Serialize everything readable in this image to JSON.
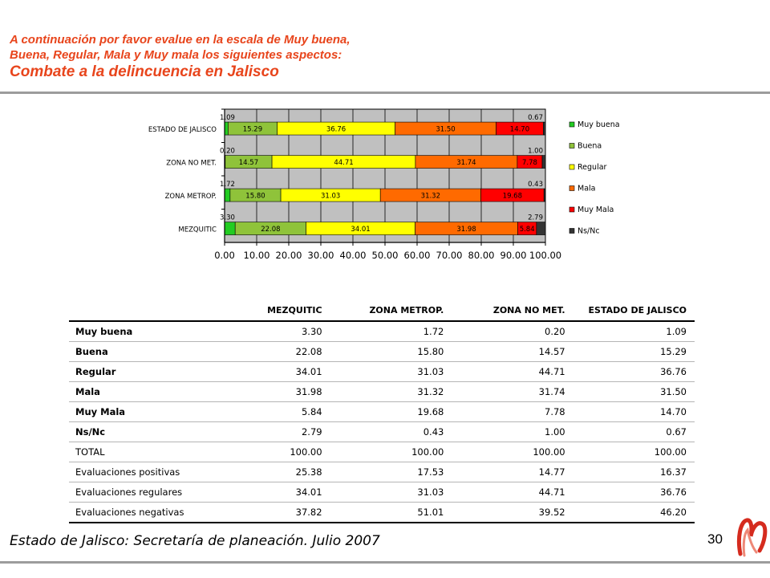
{
  "header": {
    "line1": "A continuación por favor evalue en la escala de Muy buena,",
    "line2": "Buena, Regular, Mala y Muy mala los siguientes aspectos:",
    "title": "Combate a la delincuencia en Jalisco"
  },
  "chart_data": {
    "type": "bar",
    "orientation": "horizontal",
    "stacked": true,
    "categories": [
      "ESTADO DE JALISCO",
      "ZONA NO MET.",
      "ZONA METROP.",
      "MEZQUITIC"
    ],
    "series": [
      {
        "name": "Muy buena",
        "color": "#22cc22",
        "values": [
          1.09,
          0.2,
          1.72,
          3.3
        ]
      },
      {
        "name": "Buena",
        "color": "#8fc33a",
        "values": [
          15.29,
          14.57,
          15.8,
          22.08
        ]
      },
      {
        "name": "Regular",
        "color": "#ffff00",
        "values": [
          36.76,
          44.71,
          31.03,
          34.01
        ]
      },
      {
        "name": "Mala",
        "color": "#ff6a00",
        "values": [
          31.5,
          31.74,
          31.32,
          31.98
        ]
      },
      {
        "name": "Muy Mala",
        "color": "#ff0000",
        "values": [
          14.7,
          7.78,
          19.68,
          5.84
        ]
      },
      {
        "name": "Ns/Nc",
        "color": "#333333",
        "values": [
          0.67,
          1.0,
          0.43,
          2.79
        ]
      }
    ],
    "xlim": [
      0,
      100
    ],
    "xticks": [
      "0.00",
      "10.00",
      "20.00",
      "30.00",
      "40.00",
      "50.00",
      "60.00",
      "70.00",
      "80.00",
      "90.00",
      "100.00"
    ],
    "grid": true,
    "legend": "right",
    "plot_background": "#c0c0c0"
  },
  "table": {
    "headers": [
      "",
      "MEZQUITIC",
      "ZONA METROP.",
      "ZONA NO MET.",
      "ESTADO DE JALISCO"
    ],
    "rows": [
      {
        "label": "Muy buena",
        "bold": true,
        "values": [
          "3.30",
          "1.72",
          "0.20",
          "1.09"
        ]
      },
      {
        "label": "Buena",
        "bold": true,
        "values": [
          "22.08",
          "15.80",
          "14.57",
          "15.29"
        ]
      },
      {
        "label": "Regular",
        "bold": true,
        "values": [
          "34.01",
          "31.03",
          "44.71",
          "36.76"
        ]
      },
      {
        "label": "Mala",
        "bold": true,
        "values": [
          "31.98",
          "31.32",
          "31.74",
          "31.50"
        ]
      },
      {
        "label": "Muy Mala",
        "bold": true,
        "values": [
          "5.84",
          "19.68",
          "7.78",
          "14.70"
        ]
      },
      {
        "label": "Ns/Nc",
        "bold": true,
        "values": [
          "2.79",
          "0.43",
          "1.00",
          "0.67"
        ]
      },
      {
        "label": "TOTAL",
        "bold": false,
        "values": [
          "100.00",
          "100.00",
          "100.00",
          "100.00"
        ]
      },
      {
        "label": "Evaluaciones positivas",
        "bold": false,
        "values": [
          "25.38",
          "17.53",
          "14.77",
          "16.37"
        ]
      },
      {
        "label": "Evaluaciones regulares",
        "bold": false,
        "values": [
          "34.01",
          "31.03",
          "44.71",
          "36.76"
        ]
      },
      {
        "label": "Evaluaciones negativas",
        "bold": false,
        "values": [
          "37.82",
          "51.01",
          "39.52",
          "46.20"
        ]
      }
    ]
  },
  "footer": {
    "source": "Estado de Jalisco: Secretaría de planeación. Julio 2007",
    "page_number": "30"
  },
  "logo": {
    "icon": "mitofsky-logo-icon",
    "color": "#d52b1e"
  }
}
